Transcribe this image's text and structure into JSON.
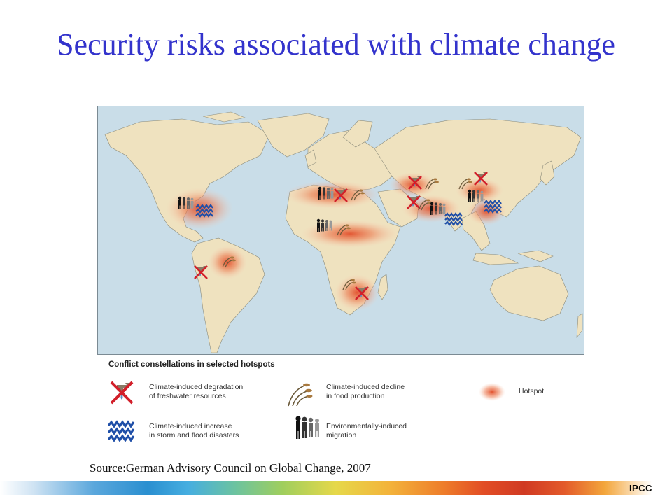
{
  "title": "Security risks associated with climate change",
  "map": {
    "hotspots": [
      {
        "region": "Gulf of Mexico / Central America",
        "icons": [
          "migration-icon",
          "storm-flood-icon"
        ]
      },
      {
        "region": "Andes / Amazon",
        "icons": [
          "freshwater-icon",
          "food-decline-icon"
        ]
      },
      {
        "region": "North Africa / Mediterranean",
        "icons": [
          "migration-icon",
          "freshwater-icon",
          "food-decline-icon"
        ]
      },
      {
        "region": "Sahel",
        "icons": [
          "migration-icon",
          "food-decline-icon"
        ]
      },
      {
        "region": "Southern Africa",
        "icons": [
          "food-decline-icon",
          "freshwater-icon"
        ]
      },
      {
        "region": "Central Asia",
        "icons": [
          "freshwater-icon",
          "food-decline-icon"
        ]
      },
      {
        "region": "South Asia / Bangladesh",
        "icons": [
          "freshwater-icon",
          "food-decline-icon",
          "migration-icon",
          "storm-flood-icon"
        ]
      },
      {
        "region": "China",
        "icons": [
          "freshwater-icon",
          "food-decline-icon",
          "migration-icon",
          "storm-flood-icon"
        ]
      }
    ]
  },
  "legend": {
    "heading": "Conflict constellations in selected hotspots",
    "items": [
      {
        "icon": "freshwater-degradation-icon",
        "text": "Climate-induced degradation\nof freshwater resources"
      },
      {
        "icon": "food-decline-icon",
        "text": "Climate-induced decline\nin food production"
      },
      {
        "icon": "hotspot-icon",
        "text": "Hotspot"
      },
      {
        "icon": "storm-flood-icon",
        "text": "Climate-induced increase\nin storm and flood disasters"
      },
      {
        "icon": "migration-icon",
        "text": "Environmentally-induced\nmigration"
      }
    ]
  },
  "source": "Source:German Advisory Council on Global Change, 2007",
  "footer": {
    "label": "IPCC"
  },
  "colors": {
    "title": "#3333cc",
    "ocean": "#c9dde8",
    "land": "#efe2bf",
    "hotspot": "#e2502c",
    "flood": "#1f4fa8",
    "cross": "#d21f2a"
  }
}
